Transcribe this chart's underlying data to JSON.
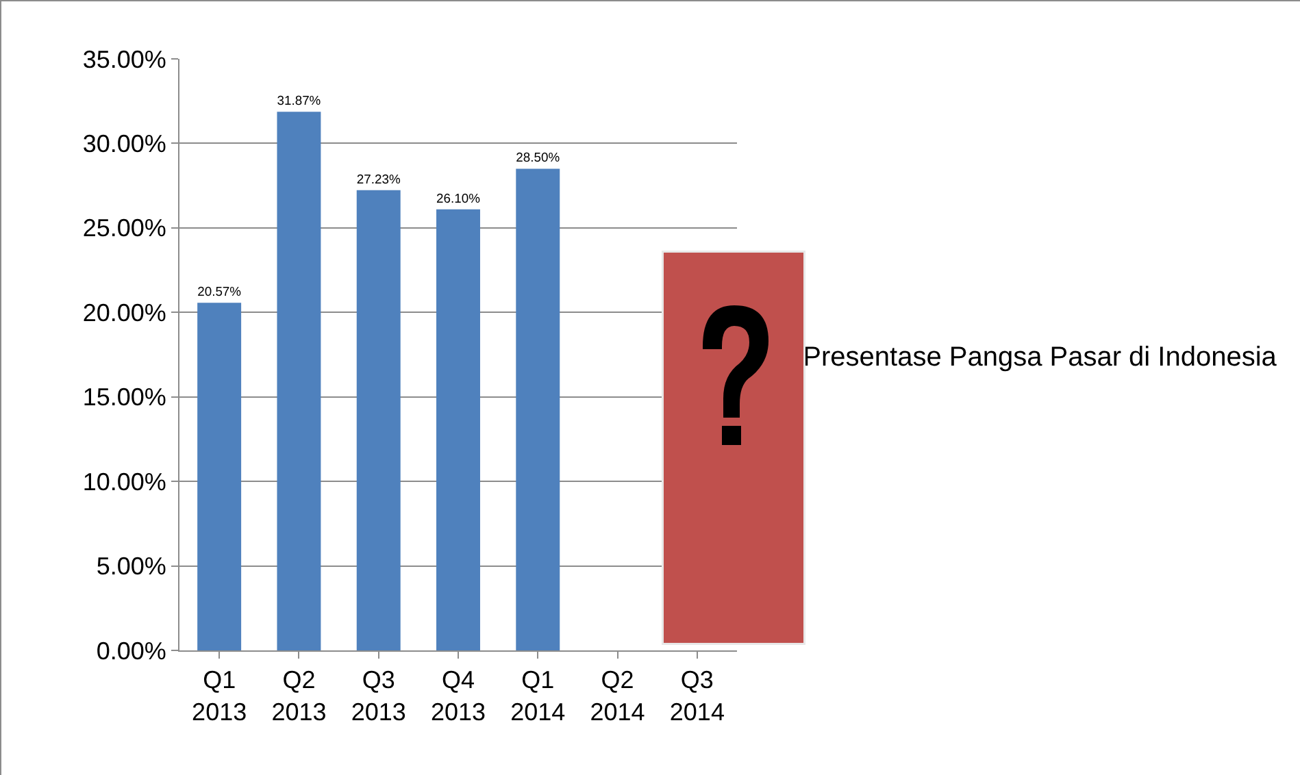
{
  "chart_data": {
    "type": "bar",
    "categories": [
      "Q1 2013",
      "Q2 2013",
      "Q3 2013",
      "Q4 2013",
      "Q1 2014",
      "Q2 2014",
      "Q3 2014"
    ],
    "series": [
      {
        "name": "Presentase Pangsa Pasar di Indonesia",
        "color": "#4f81bd",
        "values": [
          20.57,
          31.87,
          27.23,
          26.1,
          28.5,
          null,
          null
        ],
        "value_labels": [
          "20.57%",
          "31.87%",
          "27.23%",
          "26.10%",
          "28.50%",
          null,
          null
        ]
      }
    ],
    "ylim": [
      0,
      35
    ],
    "yticks": [
      {
        "value": 0,
        "label": "0.00%"
      },
      {
        "value": 5,
        "label": "5.00%"
      },
      {
        "value": 10,
        "label": "10.00%"
      },
      {
        "value": 15,
        "label": "15.00%"
      },
      {
        "value": 20,
        "label": "20.00%"
      },
      {
        "value": 25,
        "label": "25.00%"
      },
      {
        "value": 30,
        "label": "30.00%"
      },
      {
        "value": 35,
        "label": "35.00%"
      }
    ],
    "grid": "y",
    "legend": "right"
  }
}
